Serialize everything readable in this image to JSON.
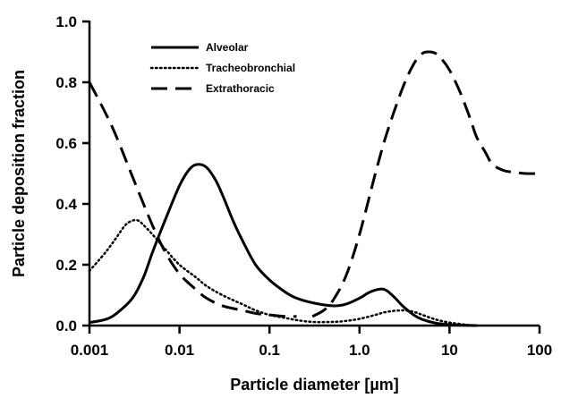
{
  "chart_data": {
    "type": "line",
    "title": "",
    "xlabel": "Particle diameter [µm]",
    "ylabel": "Particle deposition fraction",
    "xscale": "log",
    "xlim": [
      0.001,
      100
    ],
    "ylim": [
      0,
      1.0
    ],
    "xticks": [
      0.001,
      0.01,
      0.1,
      1.0,
      10,
      100
    ],
    "xtick_labels": [
      "0.001",
      "0.01",
      "0.1",
      "1.0",
      "10",
      "100"
    ],
    "yticks": [
      0,
      0.2,
      0.4,
      0.6,
      0.8,
      1.0
    ],
    "ytick_labels": [
      "0.0",
      "0.2",
      "0.4",
      "0.6",
      "0.8",
      "1.0"
    ],
    "grid": false,
    "legend_position": "top-center",
    "series": [
      {
        "name": "Alveolar",
        "style": "solid",
        "x": [
          0.001,
          0.0015,
          0.002,
          0.003,
          0.004,
          0.005,
          0.007,
          0.01,
          0.013,
          0.016,
          0.02,
          0.025,
          0.03,
          0.04,
          0.05,
          0.07,
          0.1,
          0.15,
          0.2,
          0.3,
          0.5,
          0.7,
          1.0,
          1.3,
          1.7,
          2.0,
          2.5,
          3.0,
          4.0,
          5.0,
          7.0,
          10,
          15,
          20
        ],
        "y": [
          0.01,
          0.02,
          0.04,
          0.09,
          0.16,
          0.24,
          0.35,
          0.46,
          0.515,
          0.53,
          0.52,
          0.48,
          0.43,
          0.34,
          0.28,
          0.2,
          0.15,
          0.11,
          0.09,
          0.075,
          0.065,
          0.07,
          0.09,
          0.11,
          0.12,
          0.115,
          0.09,
          0.065,
          0.035,
          0.02,
          0.008,
          0.003,
          0.001,
          0.0
        ]
      },
      {
        "name": "Tracheobronchial",
        "style": "dotted",
        "x": [
          0.001,
          0.0015,
          0.002,
          0.0025,
          0.003,
          0.0035,
          0.004,
          0.005,
          0.007,
          0.01,
          0.015,
          0.02,
          0.03,
          0.05,
          0.07,
          0.1,
          0.15,
          0.2,
          0.3,
          0.5,
          0.7,
          1.0,
          1.5,
          2.0,
          3.0,
          4.0,
          5.0,
          7.0,
          10,
          15,
          20
        ],
        "y": [
          0.18,
          0.24,
          0.29,
          0.33,
          0.345,
          0.345,
          0.33,
          0.3,
          0.25,
          0.2,
          0.16,
          0.13,
          0.1,
          0.07,
          0.05,
          0.035,
          0.025,
          0.018,
          0.012,
          0.012,
          0.015,
          0.022,
          0.035,
          0.045,
          0.05,
          0.045,
          0.035,
          0.02,
          0.01,
          0.003,
          0.0
        ]
      },
      {
        "name": "Extrathoracic",
        "style": "dashed",
        "segments": [
          {
            "x": [
              0.001,
              0.0015,
              0.002,
              0.003,
              0.005,
              0.007,
              0.01,
              0.015,
              0.02,
              0.03,
              0.05,
              0.07,
              0.1,
              0.15,
              0.2
            ],
            "y": [
              0.8,
              0.7,
              0.62,
              0.49,
              0.33,
              0.24,
              0.17,
              0.12,
              0.09,
              0.065,
              0.05,
              0.04,
              0.035,
              0.03,
              0.03
            ]
          },
          {
            "x": [
              0.3,
              0.4,
              0.5,
              0.7,
              1.0,
              1.5,
              2.0,
              3.0,
              4.0,
              5.0,
              6.0,
              7.0,
              8.0,
              10,
              13,
              17,
              20,
              25,
              30,
              40,
              50,
              70,
              100
            ],
            "y": [
              0.03,
              0.05,
              0.08,
              0.16,
              0.3,
              0.5,
              0.63,
              0.78,
              0.86,
              0.895,
              0.9,
              0.895,
              0.88,
              0.84,
              0.77,
              0.68,
              0.62,
              0.57,
              0.53,
              0.51,
              0.505,
              0.5,
              0.5
            ]
          }
        ]
      }
    ]
  }
}
